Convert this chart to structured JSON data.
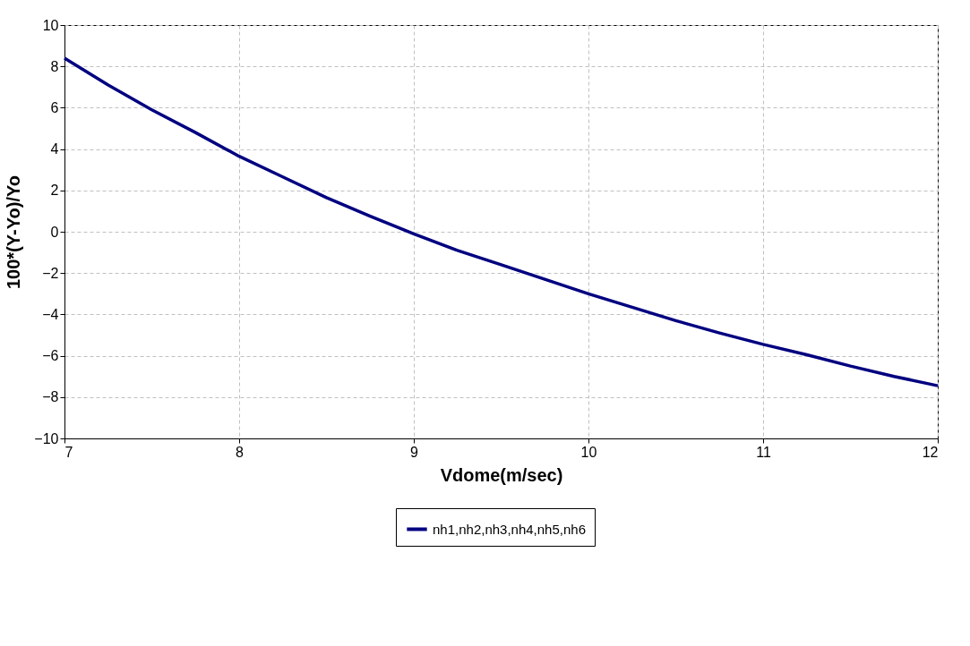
{
  "chart_data": {
    "type": "line",
    "xlabel": "Vdome(m/sec)",
    "ylabel": "100*(Y-Yo)/Yo",
    "x": [
      7,
      7.25,
      7.5,
      7.75,
      8,
      8.25,
      8.5,
      8.75,
      9,
      9.25,
      9.5,
      9.75,
      10,
      10.25,
      10.5,
      10.75,
      11,
      11.25,
      11.5,
      11.75,
      12
    ],
    "series": [
      {
        "name": "nh1,nh2,nh3,nh4,nh5,nh6",
        "color": "#000080",
        "values": [
          8.4,
          7.1,
          5.9,
          4.8,
          3.65,
          2.65,
          1.65,
          0.75,
          -0.1,
          -0.9,
          -1.6,
          -2.3,
          -3.0,
          -3.65,
          -4.3,
          -4.9,
          -5.45,
          -5.95,
          -6.5,
          -7.0,
          -7.45
        ]
      }
    ],
    "xlim": [
      7,
      12
    ],
    "xticks": [
      7,
      8,
      9,
      10,
      11,
      12
    ],
    "ylim": [
      -10,
      10
    ],
    "yticks": [
      -10,
      -8,
      -6,
      -4,
      -2,
      0,
      2,
      4,
      6,
      8,
      10
    ],
    "grid": true,
    "legend": "bottom",
    "marker": "none",
    "line_style": "solid"
  }
}
